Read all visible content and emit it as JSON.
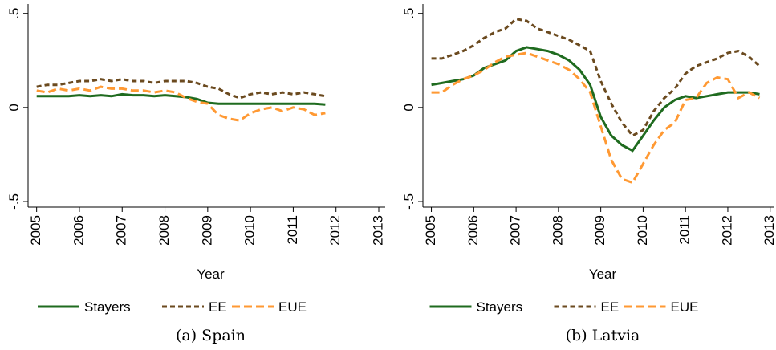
{
  "chart_data": [
    {
      "type": "line",
      "caption": "(a) Spain",
      "xlabel": "Year",
      "x": [
        2005,
        2005.25,
        2005.5,
        2005.75,
        2006,
        2006.25,
        2006.5,
        2006.75,
        2007,
        2007.25,
        2007.5,
        2007.75,
        2008,
        2008.25,
        2008.5,
        2008.75,
        2009,
        2009.25,
        2009.5,
        2009.75,
        2010,
        2010.25,
        2010.5,
        2010.75,
        2011,
        2011.25,
        2011.5,
        2011.75
      ],
      "series": [
        {
          "name": "Stayers",
          "color": "#1f6b1f",
          "line_style": "solid",
          "values": [
            0.06,
            0.06,
            0.06,
            0.06,
            0.065,
            0.06,
            0.065,
            0.06,
            0.07,
            0.065,
            0.065,
            0.06,
            0.065,
            0.06,
            0.055,
            0.045,
            0.025,
            0.02,
            0.02,
            0.02,
            0.02,
            0.02,
            0.02,
            0.02,
            0.02,
            0.02,
            0.02,
            0.015
          ]
        },
        {
          "name": "EE",
          "color": "#6b4a1f",
          "line_style": "dashed",
          "values": [
            0.11,
            0.12,
            0.12,
            0.13,
            0.14,
            0.14,
            0.15,
            0.14,
            0.15,
            0.14,
            0.14,
            0.13,
            0.14,
            0.14,
            0.14,
            0.13,
            0.11,
            0.1,
            0.07,
            0.05,
            0.07,
            0.08,
            0.07,
            0.08,
            0.07,
            0.08,
            0.07,
            0.06
          ]
        },
        {
          "name": "EUE",
          "color": "#ff9933",
          "line_style": "longdash",
          "values": [
            0.09,
            0.08,
            0.1,
            0.09,
            0.1,
            0.09,
            0.11,
            0.1,
            0.1,
            0.09,
            0.09,
            0.08,
            0.09,
            0.08,
            0.05,
            0.03,
            0.02,
            -0.04,
            -0.06,
            -0.07,
            -0.03,
            -0.01,
            0.0,
            -0.02,
            0.0,
            -0.01,
            -0.04,
            -0.03
          ]
        }
      ],
      "xlim": [
        2004.8,
        2013.15
      ],
      "ylim": [
        -0.53,
        0.55
      ],
      "xticks": [
        2005,
        2006,
        2007,
        2008,
        2009,
        2010,
        2011,
        2012,
        2013
      ],
      "yticks": [
        {
          "value": -0.5,
          "label": "-.5"
        },
        0,
        {
          "value": 0.5,
          "label": ".5"
        }
      ],
      "grid": false,
      "legend": "bottom"
    },
    {
      "type": "line",
      "caption": "(b) Latvia",
      "xlabel": "Year",
      "x": [
        2005,
        2005.25,
        2005.5,
        2005.75,
        2006,
        2006.25,
        2006.5,
        2006.75,
        2007,
        2007.25,
        2007.5,
        2007.75,
        2008,
        2008.25,
        2008.5,
        2008.75,
        2009,
        2009.25,
        2009.5,
        2009.75,
        2010,
        2010.25,
        2010.5,
        2010.75,
        2011,
        2011.25,
        2011.5,
        2011.75,
        2012,
        2012.25,
        2012.5,
        2012.75
      ],
      "series": [
        {
          "name": "Stayers",
          "color": "#1f6b1f",
          "line_style": "solid",
          "values": [
            0.12,
            0.13,
            0.14,
            0.15,
            0.17,
            0.21,
            0.23,
            0.25,
            0.3,
            0.32,
            0.31,
            0.3,
            0.28,
            0.25,
            0.2,
            0.12,
            -0.05,
            -0.15,
            -0.2,
            -0.23,
            -0.15,
            -0.07,
            0.0,
            0.04,
            0.06,
            0.05,
            0.06,
            0.07,
            0.08,
            0.08,
            0.08,
            0.07
          ]
        },
        {
          "name": "EE",
          "color": "#6b4a1f",
          "line_style": "dashed",
          "values": [
            0.26,
            0.26,
            0.28,
            0.3,
            0.33,
            0.37,
            0.4,
            0.42,
            0.47,
            0.46,
            0.42,
            0.4,
            0.38,
            0.36,
            0.33,
            0.3,
            0.14,
            0.02,
            -0.08,
            -0.15,
            -0.12,
            -0.02,
            0.05,
            0.1,
            0.18,
            0.22,
            0.24,
            0.26,
            0.29,
            0.3,
            0.27,
            0.22
          ]
        },
        {
          "name": "EUE",
          "color": "#ff9933",
          "line_style": "longdash",
          "values": [
            0.08,
            0.08,
            0.12,
            0.15,
            0.17,
            0.2,
            0.24,
            0.27,
            0.28,
            0.29,
            0.27,
            0.25,
            0.23,
            0.2,
            0.15,
            0.08,
            -0.1,
            -0.28,
            -0.38,
            -0.4,
            -0.3,
            -0.2,
            -0.12,
            -0.08,
            0.04,
            0.05,
            0.13,
            0.16,
            0.15,
            0.05,
            0.08,
            0.05
          ]
        }
      ],
      "xlim": [
        2004.8,
        2013.1
      ],
      "ylim": [
        -0.53,
        0.55
      ],
      "xticks": [
        2005,
        2006,
        2007,
        2008,
        2009,
        2010,
        2011,
        2012,
        2013
      ],
      "yticks": [
        {
          "value": -0.5,
          "label": "-.5"
        },
        0,
        {
          "value": 0.5,
          "label": ".5"
        }
      ],
      "grid": false,
      "legend": "bottom"
    }
  ]
}
